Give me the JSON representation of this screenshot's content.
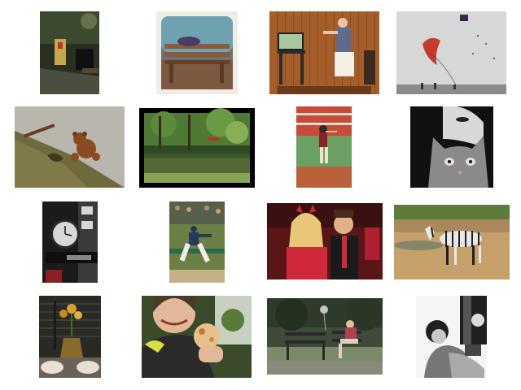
{
  "gallery": {
    "rows": 4,
    "columns": 4,
    "images": [
      {
        "name": "night-street-bench-photo",
        "dominant_colors": [
          "#2a2f22",
          "#6f7a55",
          "#c6a74c"
        ]
      },
      {
        "name": "park-bench-sleeper-photo",
        "dominant_colors": [
          "#f1ece3",
          "#8b5a3c",
          "#6fa2b0"
        ]
      },
      {
        "name": "living-room-video-game-photo",
        "dominant_colors": [
          "#a55e2a",
          "#2d2a2a",
          "#f2efe5"
        ]
      },
      {
        "name": "kites-in-sky-photo",
        "dominant_colors": [
          "#d6d7d7",
          "#c83a2c",
          "#6b6b6b"
        ]
      },
      {
        "name": "teddy-bear-on-ground-photo",
        "dominant_colors": [
          "#b9b7ad",
          "#6f6a3c",
          "#8b4b22"
        ]
      },
      {
        "name": "pond-in-forest-photo",
        "dominant_colors": [
          "#000000",
          "#3e6b2d",
          "#8aa456"
        ]
      },
      {
        "name": "boy-baseball-batting-photo",
        "dominant_colors": [
          "#6aa061",
          "#b8613a",
          "#efe2c6"
        ]
      },
      {
        "name": "woman-with-cat-bw-photo",
        "dominant_colors": [
          "#111111",
          "#9a9a9a",
          "#e0e0e0"
        ]
      },
      {
        "name": "street-clock-photo",
        "dominant_colors": [
          "#1b1b1b",
          "#d7d7d7",
          "#8c1f1f"
        ]
      },
      {
        "name": "baseball-pitcher-photo",
        "dominant_colors": [
          "#6c7f44",
          "#f3efe6",
          "#273a5a"
        ]
      },
      {
        "name": "couple-halloween-costume-photo",
        "dominant_colors": [
          "#5a1616",
          "#d02a3a",
          "#f0c8a0"
        ]
      },
      {
        "name": "zebra-walking-photo",
        "dominant_colors": [
          "#5d7b3a",
          "#c6a06a",
          "#1f1f1f"
        ]
      },
      {
        "name": "flower-vase-window-photo",
        "dominant_colors": [
          "#2a2a24",
          "#8a6a2a",
          "#d8a030"
        ]
      },
      {
        "name": "woman-eating-pastry-photo",
        "dominant_colors": [
          "#3a4a2a",
          "#e8c08a",
          "#2a2a2a"
        ]
      },
      {
        "name": "woman-on-park-bench-photo",
        "dominant_colors": [
          "#3e4b3a",
          "#7a8a6a",
          "#c7c7c7"
        ]
      },
      {
        "name": "child-bw-portrait-photo",
        "dominant_colors": [
          "#f5f5f5",
          "#777777",
          "#202020"
        ]
      }
    ]
  }
}
